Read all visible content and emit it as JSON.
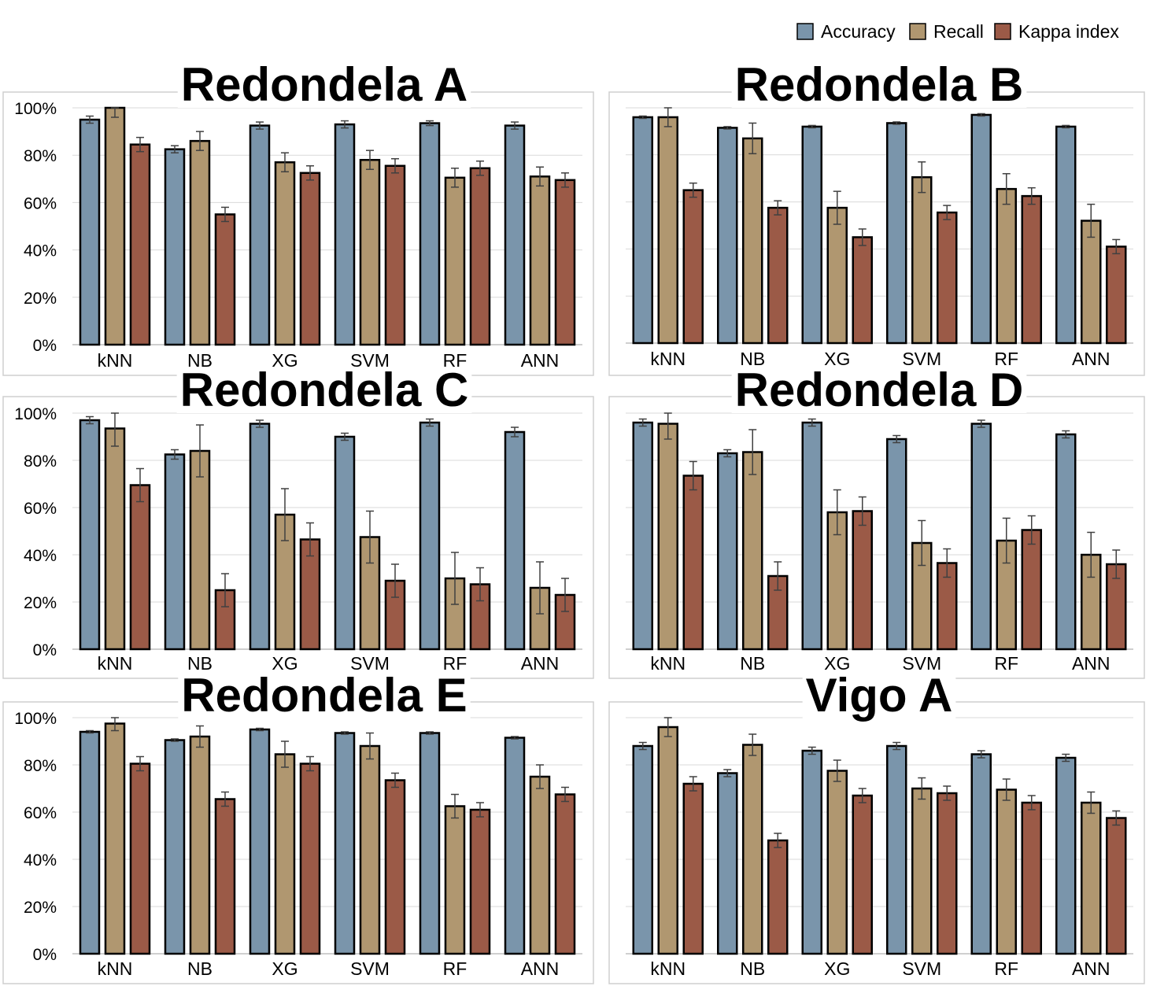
{
  "legend": {
    "items": [
      {
        "name": "Accuracy",
        "color": "#7a95ab"
      },
      {
        "name": "Recall",
        "color": "#b09770"
      },
      {
        "name": "Kappa index",
        "color": "#9b5a47"
      }
    ]
  },
  "chart_data": [
    {
      "type": "bar",
      "title": "Redondela A",
      "categories": [
        "kNN",
        "NB",
        "XG",
        "SVM",
        "RF",
        "ANN"
      ],
      "ylim": [
        0,
        100
      ],
      "yticks": [
        "0%",
        "20%",
        "40%",
        "60%",
        "80%",
        "100%"
      ],
      "series": [
        {
          "name": "Accuracy",
          "values": [
            95,
            82.5,
            92.5,
            93,
            93.5,
            92.5
          ],
          "errors": [
            1.5,
            1.5,
            1.5,
            1.5,
            1,
            1.5
          ]
        },
        {
          "name": "Recall",
          "values": [
            100,
            86,
            77,
            78,
            70.5,
            71
          ],
          "errors": [
            4,
            4,
            4,
            4,
            4,
            4
          ]
        },
        {
          "name": "Kappa index",
          "values": [
            84.5,
            55,
            72.5,
            75.5,
            74.5,
            69.5
          ],
          "errors": [
            3,
            3,
            3,
            3,
            3,
            3
          ]
        }
      ]
    },
    {
      "type": "bar",
      "title": "Redondela B",
      "categories": [
        "kNN",
        "NB",
        "XG",
        "SVM",
        "RF",
        "ANN"
      ],
      "ylim": [
        0,
        100
      ],
      "yticks": [
        "0%",
        "20%",
        "40%",
        "60%",
        "80%",
        "100%"
      ],
      "series": [
        {
          "name": "Accuracy",
          "values": [
            96,
            91.5,
            92,
            93.5,
            97,
            92
          ],
          "errors": [
            0.5,
            0.5,
            0.5,
            0.5,
            0.5,
            0.5
          ]
        },
        {
          "name": "Recall",
          "values": [
            96,
            87,
            57.5,
            70.5,
            65.5,
            52
          ],
          "errors": [
            4,
            6.5,
            7,
            6.5,
            6.5,
            7
          ]
        },
        {
          "name": "Kappa index",
          "values": [
            65,
            57.5,
            45,
            55.5,
            62.5,
            41
          ],
          "errors": [
            3,
            3,
            3.5,
            3,
            3.5,
            3
          ]
        }
      ]
    },
    {
      "type": "bar",
      "title": "Redondela C",
      "categories": [
        "kNN",
        "NB",
        "XG",
        "SVM",
        "RF",
        "ANN"
      ],
      "ylim": [
        0,
        100
      ],
      "yticks": [
        "0%",
        "20%",
        "40%",
        "60%",
        "80%",
        "100%"
      ],
      "series": [
        {
          "name": "Accuracy",
          "values": [
            97,
            82.5,
            95.5,
            90,
            96,
            92
          ],
          "errors": [
            1.5,
            2,
            1.5,
            1.5,
            1.5,
            2
          ]
        },
        {
          "name": "Recall",
          "values": [
            93.5,
            84,
            57,
            47.5,
            30,
            26
          ],
          "errors": [
            7.5,
            11,
            11,
            11,
            11,
            11
          ]
        },
        {
          "name": "Kappa index",
          "values": [
            69.5,
            25,
            46.5,
            29,
            27.5,
            23
          ],
          "errors": [
            7,
            7,
            7,
            7,
            7,
            7
          ]
        }
      ]
    },
    {
      "type": "bar",
      "title": "Redondela D",
      "categories": [
        "kNN",
        "NB",
        "XG",
        "SVM",
        "RF",
        "ANN"
      ],
      "ylim": [
        0,
        100
      ],
      "yticks": [
        "0%",
        "20%",
        "40%",
        "60%",
        "80%",
        "100%"
      ],
      "series": [
        {
          "name": "Accuracy",
          "values": [
            96,
            83,
            96,
            89,
            95.5,
            91
          ],
          "errors": [
            1.5,
            1.5,
            1.5,
            1.5,
            1.5,
            1.5
          ]
        },
        {
          "name": "Recall",
          "values": [
            95.5,
            83.5,
            58,
            45,
            46,
            40
          ],
          "errors": [
            6.5,
            9.5,
            9.5,
            9.5,
            9.5,
            9.5
          ]
        },
        {
          "name": "Kappa index",
          "values": [
            73.5,
            31,
            58.5,
            36.5,
            50.5,
            36
          ],
          "errors": [
            6,
            6,
            6,
            6,
            6,
            6
          ]
        }
      ]
    },
    {
      "type": "bar",
      "title": "Redondela E",
      "categories": [
        "kNN",
        "NB",
        "XG",
        "SVM",
        "RF",
        "ANN"
      ],
      "ylim": [
        0,
        100
      ],
      "yticks": [
        "0%",
        "20%",
        "40%",
        "60%",
        "80%",
        "100%"
      ],
      "series": [
        {
          "name": "Accuracy",
          "values": [
            94,
            90.5,
            95,
            93.5,
            93.5,
            91.5
          ],
          "errors": [
            0.5,
            0.5,
            0.5,
            0.5,
            0.5,
            0.5
          ]
        },
        {
          "name": "Recall",
          "values": [
            97.5,
            92,
            84.5,
            88,
            62.5,
            75
          ],
          "errors": [
            3,
            4.5,
            5.5,
            5.5,
            5,
            5
          ]
        },
        {
          "name": "Kappa index",
          "values": [
            80.5,
            65.5,
            80.5,
            73.5,
            61,
            67.5
          ],
          "errors": [
            3,
            3,
            3,
            3,
            3,
            3
          ]
        }
      ]
    },
    {
      "type": "bar",
      "title": "Vigo A",
      "categories": [
        "kNN",
        "NB",
        "XG",
        "SVM",
        "RF",
        "ANN"
      ],
      "ylim": [
        0,
        100
      ],
      "yticks": [
        "0%",
        "20%",
        "40%",
        "60%",
        "80%",
        "100%"
      ],
      "series": [
        {
          "name": "Accuracy",
          "values": [
            88,
            76.5,
            86,
            88,
            84.5,
            83
          ],
          "errors": [
            1.5,
            1.5,
            1.5,
            1.5,
            1.5,
            1.5
          ]
        },
        {
          "name": "Recall",
          "values": [
            96,
            88.5,
            77.5,
            70,
            69.5,
            64
          ],
          "errors": [
            4,
            4.5,
            4.5,
            4.5,
            4.5,
            4.5
          ]
        },
        {
          "name": "Kappa index",
          "values": [
            72,
            48,
            67,
            68,
            64,
            57.5
          ],
          "errors": [
            3,
            3,
            3,
            3,
            3,
            3
          ]
        }
      ]
    }
  ]
}
